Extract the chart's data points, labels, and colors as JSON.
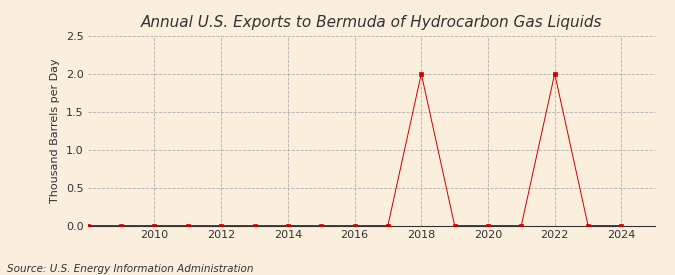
{
  "title": "Annual U.S. Exports to Bermuda of Hydrocarbon Gas Liquids",
  "ylabel": "Thousand Barrels per Day",
  "source": "Source: U.S. Energy Information Administration",
  "background_color": "#faeedd",
  "years": [
    2008,
    2009,
    2010,
    2011,
    2012,
    2013,
    2014,
    2015,
    2016,
    2017,
    2018,
    2019,
    2020,
    2021,
    2022,
    2023,
    2024
  ],
  "values": [
    0.0,
    0.0,
    0.0,
    0.0,
    0.0,
    0.0,
    0.0,
    0.0,
    0.0,
    0.0,
    2.0,
    0.0,
    0.0,
    0.0,
    2.0,
    0.0,
    0.0
  ],
  "marker_color": "#cc0000",
  "marker_size": 3,
  "line_color": "#cc0000",
  "line_width": 0.7,
  "grid_color": "#aaaaaa",
  "xlim": [
    2008,
    2025
  ],
  "ylim": [
    0.0,
    2.5
  ],
  "yticks": [
    0.0,
    0.5,
    1.0,
    1.5,
    2.0,
    2.5
  ],
  "xticks": [
    2010,
    2012,
    2014,
    2016,
    2018,
    2020,
    2022,
    2024
  ],
  "title_fontsize": 11,
  "label_fontsize": 8,
  "tick_fontsize": 8,
  "source_fontsize": 7.5
}
